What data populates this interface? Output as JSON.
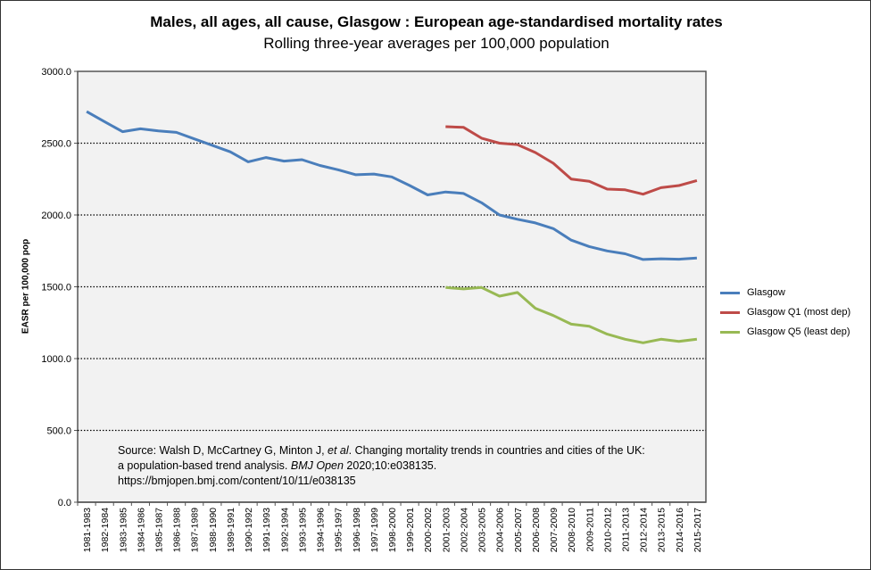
{
  "chart_data": {
    "type": "line",
    "title": "Males, all ages, all cause, Glasgow : European age-standardised mortality rates",
    "subtitle": "Rolling three-year averages per 100,000 population",
    "xlabel": "",
    "ylabel": "EASR per 100,000 pop",
    "ylim": [
      0,
      3000
    ],
    "yticks": [
      "0.0",
      "500.0",
      "1000.0",
      "1500.0",
      "2000.0",
      "2500.0",
      "3000.0"
    ],
    "grid": "horizontal dotted",
    "legend": "right",
    "categories": [
      "1981-1983",
      "1982-1984",
      "1983-1985",
      "1984-1986",
      "1985-1987",
      "1986-1988",
      "1987-1989",
      "1988-1990",
      "1989-1991",
      "1990-1992",
      "1991-1993",
      "1992-1994",
      "1993-1995",
      "1994-1996",
      "1995-1997",
      "1996-1998",
      "1997-1999",
      "1998-2000",
      "1999-2001",
      "2000-2002",
      "2001-2003",
      "2002-2004",
      "2003-2005",
      "2004-2006",
      "2005-2007",
      "2006-2008",
      "2007-2009",
      "2008-2010",
      "2009-2011",
      "2010-2012",
      "2011-2013",
      "2012-2014",
      "2013-2015",
      "2014-2016",
      "2015-2017"
    ],
    "series": [
      {
        "name": "Glasgow",
        "color": "#4a7ebb",
        "values": [
          2720,
          2650,
          2580,
          2600,
          2585,
          2575,
          2530,
          2485,
          2440,
          2370,
          2400,
          2375,
          2385,
          2345,
          2315,
          2280,
          2285,
          2265,
          2205,
          2140,
          2160,
          2150,
          2085,
          2000,
          1970,
          1945,
          1905,
          1825,
          1780,
          1750,
          1730,
          1690,
          1695,
          1692,
          1700
        ]
      },
      {
        "name": "Glasgow Q1 (most dep)",
        "color": "#be4b48",
        "values": [
          null,
          null,
          null,
          null,
          null,
          null,
          null,
          null,
          null,
          null,
          null,
          null,
          null,
          null,
          null,
          null,
          null,
          null,
          null,
          null,
          2615,
          2610,
          2535,
          2500,
          2490,
          2435,
          2360,
          2250,
          2235,
          2180,
          2175,
          2145,
          2190,
          2205,
          2240
        ]
      },
      {
        "name": "Glasgow Q5 (least dep)",
        "color": "#98b954",
        "values": [
          null,
          null,
          null,
          null,
          null,
          null,
          null,
          null,
          null,
          null,
          null,
          null,
          null,
          null,
          null,
          null,
          null,
          null,
          null,
          null,
          1495,
          1485,
          1495,
          1435,
          1460,
          1350,
          1300,
          1240,
          1225,
          1170,
          1135,
          1110,
          1135,
          1120,
          1135
        ]
      }
    ]
  },
  "source": {
    "line1": "Source: Walsh D, McCartney G, Minton J, ",
    "etal": "et al",
    "line1b": ". Changing mortality trends in countries and cities of the UK:",
    "line2": "a population-based trend analysis. ",
    "journal": "BMJ Open",
    "line2b": " 2020;10:e038135.",
    "link": "https://bmjopen.bmj.com/content/10/11/e038135"
  }
}
